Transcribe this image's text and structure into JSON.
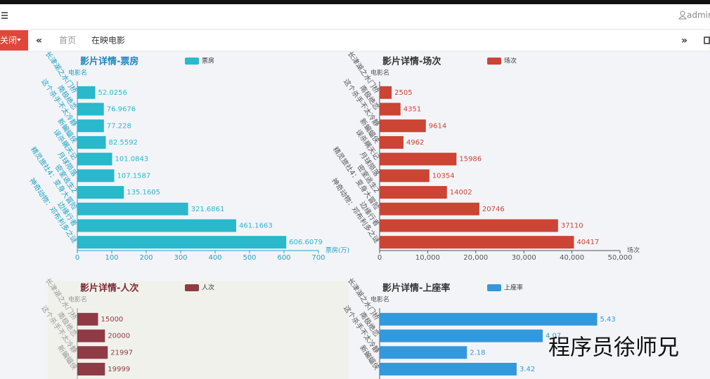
{
  "header": {
    "user": "admin"
  },
  "tabs": {
    "close": "关闭",
    "items": [
      "首页",
      "在映电影"
    ]
  },
  "watermark": "程序员徐师兄",
  "chart_data": [
    {
      "type": "bar",
      "orientation": "horizontal",
      "title": "影片详情-票房",
      "title_color": "#1a86c2",
      "label_color": "#1fa3c4",
      "y_label": "电影名",
      "x_label": "票房(万)",
      "categories": [
        "长津湖之水门桥",
        "南极绝恋",
        "这个杀手不太冷静",
        "新蝙蝠侠",
        "误杀瞒天记",
        "月球陨落",
        "密室逃生2",
        "精灵旅社4：变身大冒险",
        "边缘行者",
        "神奇动物：邓布利多之谜"
      ],
      "series": [
        {
          "name": "票房",
          "color": "#29b8cc",
          "values": [
            52.0256,
            76.9676,
            77.228,
            82.5592,
            101.0843,
            107.1587,
            135.1605,
            321.6861,
            461.1663,
            606.6079
          ]
        }
      ],
      "xlim": [
        0,
        700
      ],
      "xticks": [
        0,
        100,
        200,
        300,
        400,
        500,
        600,
        700
      ]
    },
    {
      "type": "bar",
      "orientation": "horizontal",
      "title": "影片详情-场次",
      "title_color": "#333333",
      "label_color": "#555555",
      "y_label": "电影名",
      "x_label": "场次",
      "categories": [
        "长津湖之水门桥",
        "南极绝恋",
        "这个杀手不太冷静",
        "新蝙蝠侠",
        "误杀瞒天记",
        "月球陨落",
        "密室逃生2",
        "精灵旅社4：变身大冒险",
        "边缘行者",
        "神奇动物：邓布利多之谜"
      ],
      "series": [
        {
          "name": "场次",
          "color": "#cc4433",
          "values": [
            2505,
            4351,
            9614,
            4962,
            15986,
            10354,
            14002,
            20746,
            37110,
            40417
          ]
        }
      ],
      "xlim": [
        0,
        50000
      ],
      "xticks": [
        0,
        {
          "value": 10000,
          "label": "10,000"
        },
        {
          "value": 20000,
          "label": "20,000"
        },
        {
          "value": 30000,
          "label": "30,000"
        },
        {
          "value": 40000,
          "label": "40,000"
        },
        {
          "value": 50000,
          "label": "50,000"
        }
      ]
    },
    {
      "type": "bar",
      "orientation": "horizontal",
      "title": "影片详情-人次",
      "title_color": "#7a2a35",
      "label_color": "#999999",
      "y_label": "电影名",
      "categories": [
        "长津湖之水门桥",
        "南极绝恋",
        "这个杀手不太冷静",
        "新蝙蝠侠"
      ],
      "series": [
        {
          "name": "人次",
          "color": "#8e3b46",
          "values": [
            15000,
            20000,
            21997,
            19999
          ]
        }
      ],
      "xlim": [
        0,
        175000
      ]
    },
    {
      "type": "bar",
      "orientation": "horizontal",
      "title": "影片详情-上座率",
      "title_color": "#333333",
      "label_color": "#555555",
      "y_label": "电影名",
      "categories": [
        "长津湖之水门桥",
        "南极绝恋",
        "这个杀手不太冷静",
        "新蝙蝠侠"
      ],
      "series": [
        {
          "name": "上座率",
          "color": "#3399dd",
          "values": [
            5.43,
            4.07,
            2.18,
            3.42
          ]
        }
      ],
      "xlim": [
        0,
        6
      ]
    }
  ]
}
